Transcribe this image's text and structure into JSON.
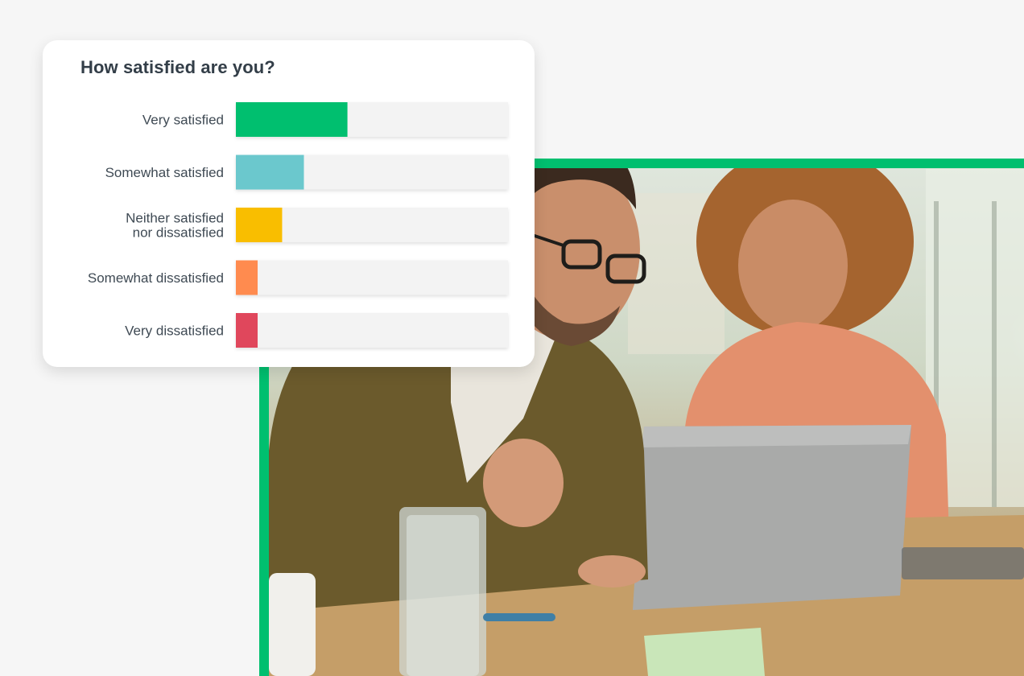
{
  "chart_data": {
    "type": "bar",
    "orientation": "horizontal",
    "title": "How satisfied are you?",
    "categories": [
      [
        "Very satisfied"
      ],
      [
        "Somewhat satisfied"
      ],
      [
        "Neither satisfied",
        "nor dissatisfied"
      ],
      [
        "Somewhat dissatisfied"
      ],
      [
        "Very dissatisfied"
      ]
    ],
    "values": [
      41,
      25,
      17,
      8,
      8
    ],
    "colors": [
      "#00bf6f",
      "#6bc8cd",
      "#f9be00",
      "#ff8b4f",
      "#e0475c"
    ],
    "xlim": [
      0,
      100
    ],
    "grid": false,
    "legend": "none"
  },
  "photo": {
    "frame_color": "#00bf6f"
  }
}
